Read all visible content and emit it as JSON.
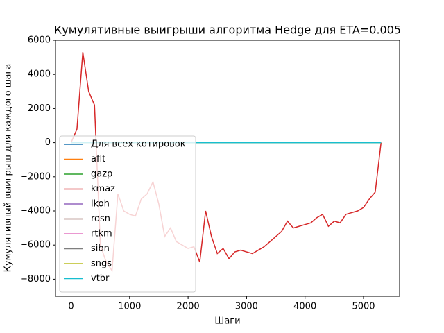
{
  "chart_data": {
    "type": "line",
    "title": "Кумулятивные выигрыши алгоритма Hedge для ETA=0.005",
    "x_label": "Шаги",
    "y_label": "Кумулятивный выигрыш для каждого шага",
    "x": [
      0,
      100,
      200,
      300,
      400,
      500,
      600,
      700,
      800,
      900,
      1000,
      1100,
      1200,
      1300,
      1400,
      1500,
      1600,
      1700,
      1800,
      1900,
      2000,
      2100,
      2200,
      2300,
      2400,
      2500,
      2600,
      2700,
      2800,
      2900,
      3000,
      3100,
      3200,
      3300,
      3400,
      3500,
      3600,
      3700,
      3800,
      3900,
      4000,
      4100,
      4200,
      4300,
      4400,
      4500,
      4600,
      4700,
      4800,
      4900,
      5000,
      5100,
      5200,
      5300
    ],
    "series": [
      {
        "name": "Для всех котировок",
        "color": "#1f77b4",
        "values": [
          0,
          0,
          0,
          0,
          0,
          0,
          0,
          0,
          0,
          0,
          0,
          0,
          0,
          0,
          0,
          0,
          0,
          0,
          0,
          0,
          0,
          0,
          0,
          0,
          0,
          0,
          0,
          0,
          0,
          0,
          0,
          0,
          0,
          0,
          0,
          0,
          0,
          0,
          0,
          0,
          0,
          0,
          0,
          0,
          0,
          0,
          0,
          0,
          0,
          0,
          0,
          0,
          0,
          0
        ]
      },
      {
        "name": "aflt",
        "color": "#ff7f0e",
        "values": [
          0,
          0,
          0,
          0,
          0,
          0,
          0,
          0,
          0,
          0,
          0,
          0,
          0,
          0,
          0,
          0,
          0,
          0,
          0,
          0,
          0,
          0,
          0,
          0,
          0,
          0,
          0,
          0,
          0,
          0,
          0,
          0,
          0,
          0,
          0,
          0,
          0,
          0,
          0,
          0,
          0,
          0,
          0,
          0,
          0,
          0,
          0,
          0,
          0,
          0,
          0,
          0,
          0,
          0
        ]
      },
      {
        "name": "gazp",
        "color": "#2ca02c",
        "values": [
          0,
          0,
          0,
          0,
          0,
          0,
          0,
          0,
          0,
          0,
          0,
          0,
          0,
          0,
          0,
          0,
          0,
          0,
          0,
          0,
          0,
          0,
          0,
          0,
          0,
          0,
          0,
          0,
          0,
          0,
          0,
          0,
          0,
          0,
          0,
          0,
          0,
          0,
          0,
          0,
          0,
          0,
          0,
          0,
          0,
          0,
          0,
          0,
          0,
          0,
          0,
          0,
          0,
          0
        ]
      },
      {
        "name": "kmaz",
        "color": "#d62728",
        "values": [
          0,
          800,
          5300,
          3000,
          2200,
          -6000,
          -7000,
          -7500,
          -3000,
          -4000,
          -4200,
          -4300,
          -3300,
          -3000,
          -2300,
          -3600,
          -5500,
          -5000,
          -5800,
          -6000,
          -6200,
          -6100,
          -7000,
          -4000,
          -5500,
          -6500,
          -6200,
          -6800,
          -6400,
          -6300,
          -6400,
          -6500,
          -6300,
          -6100,
          -5800,
          -5500,
          -5200,
          -4600,
          -5000,
          -4900,
          -4800,
          -4700,
          -4400,
          -4200,
          -4900,
          -4600,
          -4700,
          -4200,
          -4100,
          -4000,
          -3800,
          -3300,
          -2900,
          0
        ]
      },
      {
        "name": "lkoh",
        "color": "#9467bd",
        "values": [
          0,
          0,
          0,
          0,
          0,
          0,
          0,
          0,
          0,
          0,
          0,
          0,
          0,
          0,
          0,
          0,
          0,
          0,
          0,
          0,
          0,
          0,
          0,
          0,
          0,
          0,
          0,
          0,
          0,
          0,
          0,
          0,
          0,
          0,
          0,
          0,
          0,
          0,
          0,
          0,
          0,
          0,
          0,
          0,
          0,
          0,
          0,
          0,
          0,
          0,
          0,
          0,
          0,
          0
        ]
      },
      {
        "name": "rosn",
        "color": "#8c564b",
        "values": [
          0,
          0,
          0,
          0,
          0,
          0,
          0,
          0,
          0,
          0,
          0,
          0,
          0,
          0,
          0,
          0,
          0,
          0,
          0,
          0,
          0,
          0,
          0,
          0,
          0,
          0,
          0,
          0,
          0,
          0,
          0,
          0,
          0,
          0,
          0,
          0,
          0,
          0,
          0,
          0,
          0,
          0,
          0,
          0,
          0,
          0,
          0,
          0,
          0,
          0,
          0,
          0,
          0,
          0
        ]
      },
      {
        "name": "rtkm",
        "color": "#e377c2",
        "values": [
          0,
          0,
          0,
          0,
          0,
          0,
          0,
          0,
          0,
          0,
          0,
          0,
          0,
          0,
          0,
          0,
          0,
          0,
          0,
          0,
          0,
          0,
          0,
          0,
          0,
          0,
          0,
          0,
          0,
          0,
          0,
          0,
          0,
          0,
          0,
          0,
          0,
          0,
          0,
          0,
          0,
          0,
          0,
          0,
          0,
          0,
          0,
          0,
          0,
          0,
          0,
          0,
          0,
          0
        ]
      },
      {
        "name": "sibn",
        "color": "#7f7f7f",
        "values": [
          0,
          0,
          0,
          0,
          0,
          0,
          0,
          0,
          0,
          0,
          0,
          0,
          0,
          0,
          0,
          0,
          0,
          0,
          0,
          0,
          0,
          0,
          0,
          0,
          0,
          0,
          0,
          0,
          0,
          0,
          0,
          0,
          0,
          0,
          0,
          0,
          0,
          0,
          0,
          0,
          0,
          0,
          0,
          0,
          0,
          0,
          0,
          0,
          0,
          0,
          0,
          0,
          0,
          0
        ]
      },
      {
        "name": "sngs",
        "color": "#bcbd22",
        "values": [
          0,
          0,
          0,
          0,
          0,
          0,
          0,
          0,
          0,
          0,
          0,
          0,
          0,
          0,
          0,
          0,
          0,
          0,
          0,
          0,
          0,
          0,
          0,
          0,
          0,
          0,
          0,
          0,
          0,
          0,
          0,
          0,
          0,
          0,
          0,
          0,
          0,
          0,
          0,
          0,
          0,
          0,
          0,
          0,
          0,
          0,
          0,
          0,
          0,
          0,
          0,
          0,
          0,
          0
        ]
      },
      {
        "name": "vtbr",
        "color": "#17becf",
        "values": [
          0,
          0,
          0,
          0,
          0,
          0,
          0,
          0,
          0,
          0,
          0,
          0,
          0,
          0,
          0,
          0,
          0,
          0,
          0,
          0,
          0,
          0,
          0,
          0,
          0,
          0,
          0,
          0,
          0,
          0,
          0,
          0,
          0,
          0,
          0,
          0,
          0,
          0,
          0,
          0,
          0,
          0,
          0,
          0,
          0,
          0,
          0,
          0,
          0,
          0,
          0,
          0,
          0,
          0
        ]
      }
    ],
    "xlim": [
      -267,
      5617
    ],
    "xticks": [
      0,
      1000,
      2000,
      3000,
      4000,
      5000
    ],
    "ylim": [
      -9000,
      6000
    ],
    "yticks": [
      {
        "value": -8000,
        "label": "−8000"
      },
      {
        "value": -6000,
        "label": "−6000"
      },
      {
        "value": -4000,
        "label": "−4000"
      },
      {
        "value": -2000,
        "label": "−2000"
      },
      0,
      2000,
      4000,
      6000
    ],
    "legend": "lower left"
  }
}
